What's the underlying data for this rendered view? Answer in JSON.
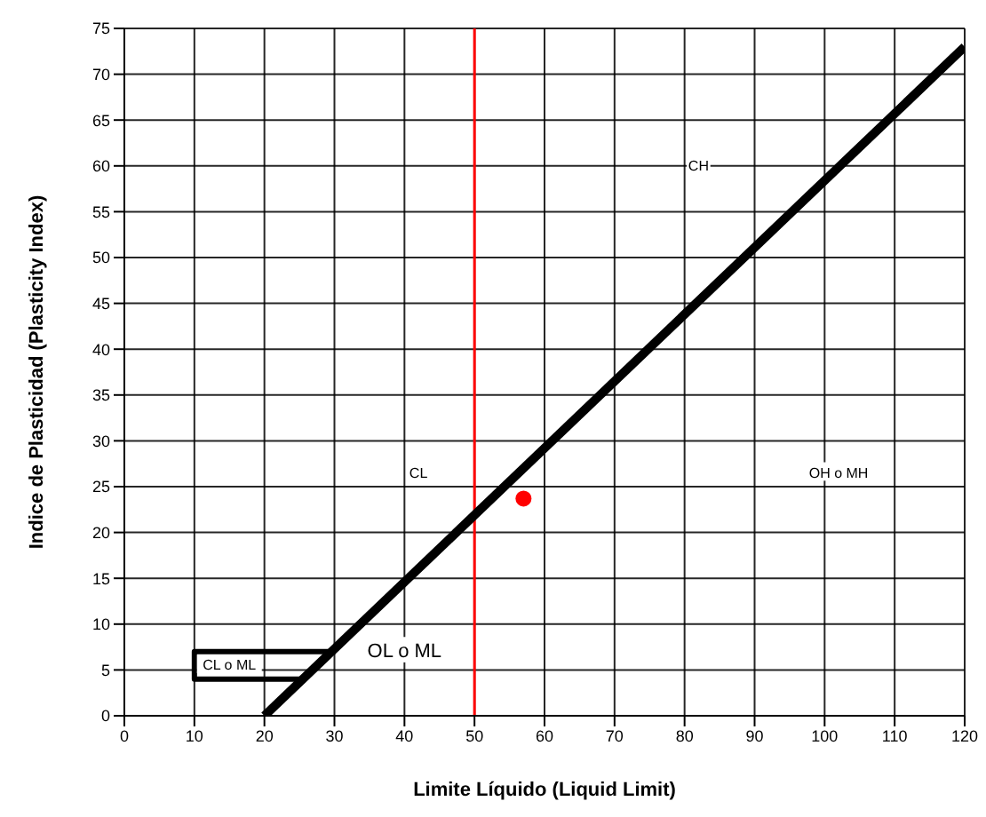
{
  "chart_data": {
    "type": "scatter",
    "xlabel": "Limite Líquido (Liquid Limit)",
    "ylabel": "Indice de Plasticidad (Plasticity Index)",
    "xlim": [
      0,
      120
    ],
    "ylim": [
      0,
      75
    ],
    "xticks": [
      0,
      10,
      20,
      30,
      40,
      50,
      60,
      70,
      80,
      90,
      100,
      110,
      120
    ],
    "yticks": [
      0,
      5,
      10,
      15,
      20,
      25,
      30,
      35,
      40,
      45,
      50,
      55,
      60,
      65,
      70,
      75
    ],
    "grid": true,
    "series": [
      {
        "type": "line",
        "color": "#000000",
        "x": [
          20,
          120
        ],
        "values": [
          0,
          73
        ],
        "marker": "none",
        "line_style": "solid"
      },
      {
        "type": "line",
        "color": "#000000",
        "x": [
          25.5,
          10,
          10,
          29.6
        ],
        "values": [
          4,
          4,
          7,
          7
        ],
        "marker": "none",
        "line_style": "solid"
      },
      {
        "color": "#ff0000",
        "x": [
          57
        ],
        "values": [
          23.7
        ],
        "marker": "circle"
      }
    ],
    "ref_lines": [
      {
        "axis": "x",
        "value": 50,
        "color": "#ff0000"
      }
    ],
    "annotations": [
      "CH",
      "CL",
      "OH o MH",
      "OL o ML",
      "CL o ML"
    ]
  }
}
